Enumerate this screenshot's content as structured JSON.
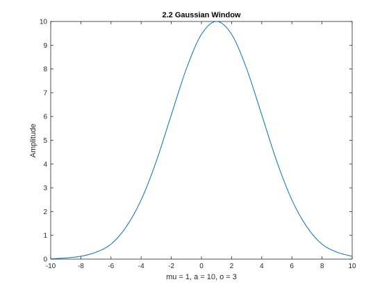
{
  "chart_data": {
    "type": "line",
    "title": "2.2 Gaussian Window",
    "xlabel": "mu = 1, a = 10, o = 3",
    "ylabel": "Amplitude",
    "xlim": [
      -10,
      10
    ],
    "ylim": [
      0,
      10
    ],
    "x_ticks": [
      "-10",
      "-8",
      "-6",
      "-4",
      "-2",
      "0",
      "2",
      "4",
      "6",
      "8",
      "10"
    ],
    "y_ticks": [
      "0",
      "1",
      "2",
      "3",
      "4",
      "5",
      "6",
      "7",
      "8",
      "9",
      "10"
    ],
    "grid": false,
    "series": [
      {
        "color": "#0072bd",
        "x": [
          -10,
          -9,
          -8,
          -7,
          -6,
          -5,
          -4,
          -3,
          -2,
          -1,
          0,
          1,
          2,
          3,
          4,
          5,
          6,
          7,
          8,
          9,
          10
        ],
        "y": [
          0.01,
          0.05,
          0.12,
          0.29,
          0.63,
          1.35,
          2.49,
          4.11,
          6.07,
          8.01,
          9.46,
          10.0,
          9.46,
          8.01,
          6.07,
          4.11,
          2.49,
          1.35,
          0.63,
          0.29,
          0.12
        ]
      }
    ]
  }
}
